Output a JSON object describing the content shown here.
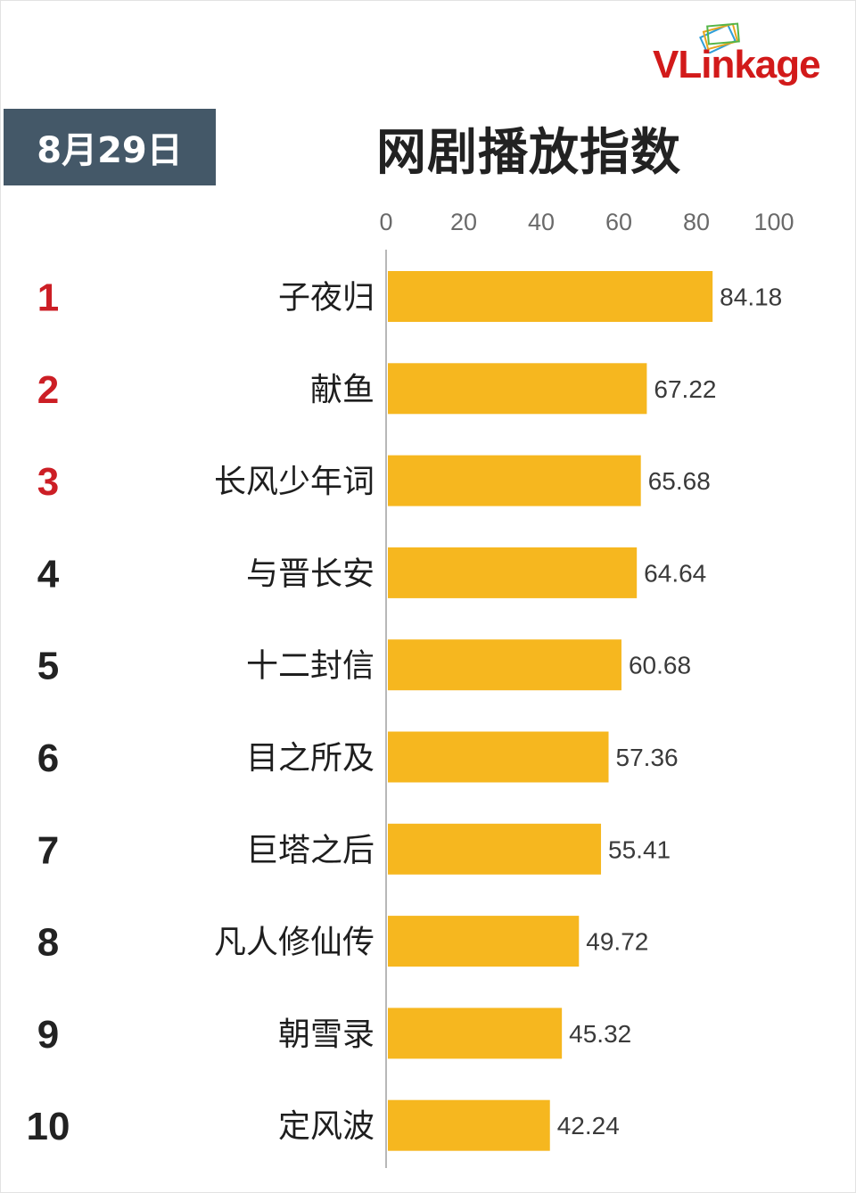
{
  "header": {
    "date": "8月29日",
    "title": "网剧播放指数",
    "logo_text": "VLinkage",
    "logo_icon": "stacked-cards-icon"
  },
  "colors": {
    "bar": "#F6B71F",
    "date_badge": "#445868",
    "rank_top3": "#CC1E25",
    "rank_rest": "#222222",
    "logo": "#D21A1A"
  },
  "chart_data": {
    "type": "bar",
    "orientation": "horizontal",
    "title": "网剧播放指数",
    "xlim": [
      0,
      100
    ],
    "x_ticks": [
      0,
      20,
      40,
      60,
      80,
      100
    ],
    "x_axis_position": "top",
    "grid": false,
    "ranks": [
      "1",
      "2",
      "3",
      "4",
      "5",
      "6",
      "7",
      "8",
      "9",
      "10"
    ],
    "categories": [
      "子夜归",
      "献鱼",
      "长风少年词",
      "与晋长安",
      "十二封信",
      "目之所及",
      "巨塔之后",
      "凡人修仙传",
      "朝雪录",
      "定风波"
    ],
    "values": [
      84.18,
      67.22,
      65.68,
      64.64,
      60.68,
      57.36,
      55.41,
      49.72,
      45.32,
      42.24
    ],
    "value_labels": [
      "84.18",
      "67.22",
      "65.68",
      "64.64",
      "60.68",
      "57.36",
      "55.41",
      "49.72",
      "45.32",
      "42.24"
    ]
  }
}
